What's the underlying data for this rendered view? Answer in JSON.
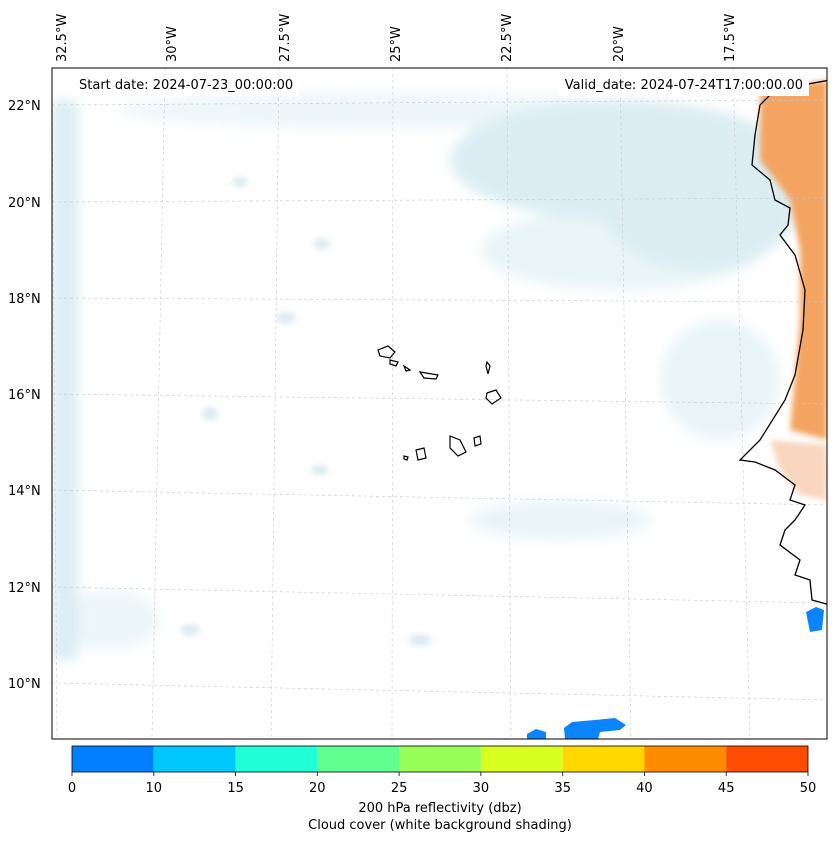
{
  "header": {
    "start_date": "Start date: 2024-07-23_00:00:00",
    "valid_date": "Valid_date: 2024-07-24T17:00:00.00"
  },
  "axes": {
    "lon_labels": [
      "32.5°W",
      "30°W",
      "27.5°W",
      "25°W",
      "22.5°W",
      "20°W",
      "17.5°W"
    ],
    "lat_labels": [
      "22°N",
      "20°N",
      "18°N",
      "16°N",
      "14°N",
      "12°N",
      "10°N"
    ]
  },
  "colorbar": {
    "ticks": [
      "0",
      "10",
      "15",
      "20",
      "25",
      "30",
      "35",
      "40",
      "45",
      "50"
    ],
    "colors": [
      "#0080ff",
      "#00c8ff",
      "#20ffd8",
      "#60ff90",
      "#98ff58",
      "#d8ff20",
      "#ffd800",
      "#ff8c00",
      "#ff4c00"
    ],
    "label": "200 hPa reflectivity (dbz)",
    "sublabel": "Cloud cover (white background shading)"
  },
  "colors": {
    "cloud": "#cfe7ef",
    "warm": "#f4a460",
    "coast": "#000000",
    "reflectivity_low": "#0a84ff"
  }
}
